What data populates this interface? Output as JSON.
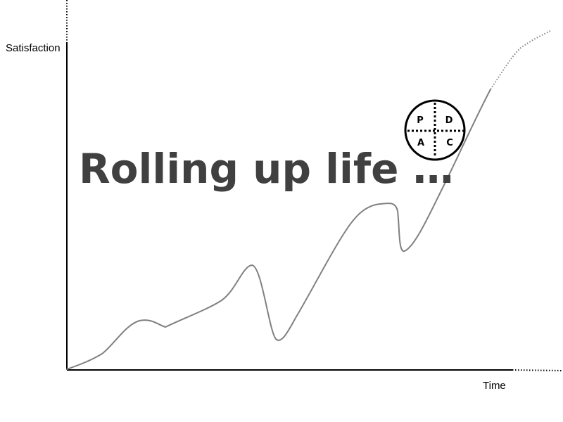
{
  "axes": {
    "y_label": "Satisfaction",
    "x_label": "Time"
  },
  "headline": "Rolling up life …",
  "pdca": {
    "top_left": "P",
    "top_right": "D",
    "bottom_left": "A",
    "bottom_right": "C"
  },
  "colors": {
    "axis": "#000000",
    "curve": "#808080",
    "headline": "#404040",
    "background": "#ffffff"
  }
}
